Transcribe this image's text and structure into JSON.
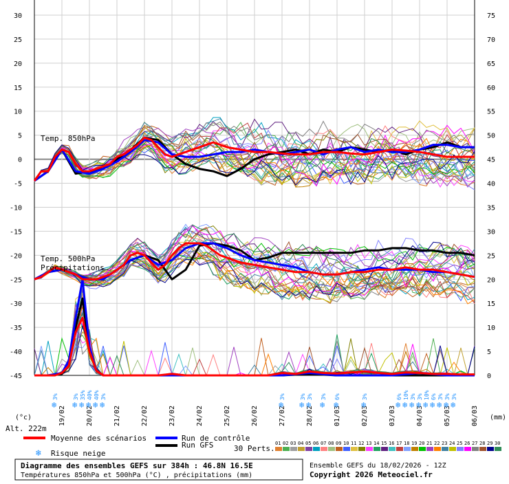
{
  "chart_data": {
    "type": "line",
    "title": "Diagramme des ensembles GEFS sur 384h : 46.8N 16.5E",
    "subtitle": "Températures 850hPa et 500hPa (°C) , précipitations (mm)",
    "run_label": "Ensemble GEFS du 18/02/2026 - 12Z",
    "copyright": "Copyright 2026 Meteociel.fr",
    "altitude": "Alt. 222m",
    "ylabel_left": "(°c)",
    "ylabel_right": "(mm)",
    "panel_labels": [
      "Temp. 850hPa",
      "Temp. 500hPa",
      "Précipitations"
    ],
    "y_left_ticks": [
      30,
      25,
      20,
      15,
      10,
      5,
      0,
      -5,
      -10,
      -15,
      -20,
      -25,
      -30,
      -35,
      -40,
      -45
    ],
    "y_right_ticks": [
      75,
      70,
      65,
      60,
      55,
      50,
      45,
      40,
      35,
      30,
      25,
      20,
      15,
      10,
      5,
      0
    ],
    "ylim_left": [
      -45,
      30
    ],
    "ylim_right": [
      0,
      75
    ],
    "x_dates": [
      "19/02",
      "20/02",
      "21/02",
      "22/02",
      "23/02",
      "24/02",
      "25/02",
      "26/02",
      "27/02",
      "28/02",
      "01/03",
      "02/03",
      "03/03",
      "04/03",
      "05/03",
      "06/03"
    ],
    "legend": {
      "mean": "Moyenne des scénarios",
      "control": "Run de contrôle",
      "gfs": "Run GFS",
      "snow": "Risque neige",
      "perts_label": "30 Perts.",
      "pert_numbers": [
        "01",
        "02",
        "03",
        "04",
        "05",
        "06",
        "07",
        "08",
        "09",
        "10",
        "11",
        "12",
        "13",
        "14",
        "15",
        "16",
        "17",
        "18",
        "19",
        "20",
        "21",
        "22",
        "23",
        "24",
        "25",
        "26",
        "27",
        "28",
        "29",
        "30"
      ],
      "pert_colors": [
        "#e08030",
        "#4caf50",
        "#9e9e9e",
        "#c0a030",
        "#8040a0",
        "#00a0c0",
        "#ff8080",
        "#a0c080",
        "#c06020",
        "#4060ff",
        "#e0c040",
        "#808000",
        "#ff40ff",
        "#20a060",
        "#602080",
        "#40c0c0",
        "#c04040",
        "#80a0ff",
        "#c08000",
        "#00c000",
        "#a040c0",
        "#ff8000",
        "#4080a0",
        "#c0c000",
        "#8080ff",
        "#ff00ff",
        "#808080",
        "#a0522d",
        "#00008b",
        "#2e8b57"
      ]
    },
    "snow_risk": [
      {
        "day": 0.75,
        "pct": [
          "3%"
        ]
      },
      {
        "day": 1.5,
        "pct": [
          "3%"
        ]
      },
      {
        "day": 1.75,
        "pct": [
          "35%"
        ]
      },
      {
        "day": 2.0,
        "pct": [
          "40%"
        ]
      },
      {
        "day": 2.25,
        "pct": [
          "40%"
        ]
      },
      {
        "day": 2.5,
        "pct": [
          "3%"
        ]
      },
      {
        "day": 9.0,
        "pct": [
          "3%"
        ]
      },
      {
        "day": 9.75,
        "pct": [
          "3%"
        ]
      },
      {
        "day": 10.0,
        "pct": [
          "3%"
        ]
      },
      {
        "day": 10.5,
        "pct": [
          "3%"
        ]
      },
      {
        "day": 11.0,
        "pct": [
          "6%"
        ]
      },
      {
        "day": 12.0,
        "pct": [
          "3%"
        ]
      },
      {
        "day": 13.25,
        "pct": [
          "6%"
        ]
      },
      {
        "day": 13.5,
        "pct": [
          "10%"
        ]
      },
      {
        "day": 13.75,
        "pct": [
          "3%"
        ]
      },
      {
        "day": 14.0,
        "pct": [
          "3%"
        ]
      },
      {
        "day": 14.25,
        "pct": [
          "10%"
        ]
      },
      {
        "day": 14.5,
        "pct": [
          "6%"
        ]
      },
      {
        "day": 14.75,
        "pct": [
          "3%"
        ]
      },
      {
        "day": 15.0,
        "pct": [
          "3%"
        ]
      },
      {
        "day": 15.25,
        "pct": [
          "3%"
        ]
      }
    ],
    "series": [
      {
        "name": "Moyenne des scénarios",
        "panel": "t850",
        "color": "#ff0000",
        "x": [
          0,
          0.25,
          0.5,
          0.75,
          1,
          1.25,
          1.5,
          1.75,
          2,
          2.25,
          2.5,
          2.75,
          3,
          3.25,
          3.5,
          3.75,
          4,
          4.25,
          4.5,
          4.75,
          5,
          5.25,
          5.5,
          5.75,
          6,
          6.25,
          6.5,
          6.75,
          7,
          7.5,
          8,
          8.5,
          9,
          9.5,
          10,
          10.5,
          11,
          11.5,
          12,
          12.5,
          13,
          13.5,
          14,
          14.5,
          15,
          15.5,
          16
        ],
        "values": [
          -4.5,
          -2.5,
          -2.5,
          0.5,
          2,
          1.5,
          -1,
          -2.5,
          -2.5,
          -2,
          -1.5,
          -1,
          0.5,
          1,
          2,
          3,
          4.5,
          4,
          2.5,
          1,
          0.5,
          1,
          1.5,
          2,
          2.5,
          3,
          3.5,
          3,
          2.5,
          2,
          1.5,
          1.5,
          1.2,
          1,
          1,
          1.5,
          1.5,
          1.2,
          1,
          1.5,
          2,
          1.8,
          1.5,
          1,
          0.5,
          0.5,
          0.5
        ]
      },
      {
        "name": "Run de contrôle",
        "panel": "t850",
        "color": "#0000ff",
        "x": [
          0,
          0.5,
          1,
          1.5,
          2,
          2.5,
          3,
          3.5,
          4,
          4.5,
          5,
          5.5,
          6,
          6.5,
          7,
          7.5,
          8,
          8.5,
          9,
          9.5,
          10,
          10.5,
          11,
          11.5,
          12,
          12.5,
          13,
          13.5,
          14,
          14.5,
          15,
          15.5,
          16
        ],
        "values": [
          -4.5,
          -2.5,
          2,
          -2.5,
          -3,
          -2,
          -0.5,
          1.5,
          4,
          3.5,
          1,
          0.5,
          0.5,
          1,
          1.5,
          1.5,
          2,
          1.5,
          1,
          1.5,
          2,
          1,
          2,
          2.5,
          1.5,
          2,
          1.5,
          1.5,
          2,
          3,
          3,
          2.5,
          2.5
        ]
      },
      {
        "name": "Run GFS",
        "panel": "t850",
        "color": "#000000",
        "x": [
          0,
          0.5,
          1,
          1.5,
          2,
          2.5,
          3,
          3.5,
          4,
          4.5,
          5,
          5.5,
          6,
          6.5,
          7,
          7.5,
          8,
          8.5,
          9,
          9.5,
          10,
          10.5,
          11,
          11.5,
          12,
          12.5,
          13,
          13.5,
          14,
          14.5,
          15,
          15.5,
          16
        ],
        "values": [
          -4.5,
          -2.5,
          2,
          -3,
          -2.5,
          -2,
          0,
          2,
          4.5,
          4,
          1,
          -1,
          -2,
          -2.5,
          -3.5,
          -2,
          0,
          1,
          1.5,
          2,
          1,
          2,
          1.5,
          2.5,
          2,
          1.5,
          2,
          1,
          2,
          2.5,
          3.5,
          2.5,
          2.5
        ]
      },
      {
        "name": "Moyenne des scénarios",
        "panel": "t500",
        "color": "#ff0000",
        "x": [
          0,
          0.25,
          0.5,
          0.75,
          1,
          1.25,
          1.5,
          1.75,
          2,
          2.25,
          2.5,
          2.75,
          3,
          3.25,
          3.5,
          3.75,
          4,
          4.25,
          4.5,
          4.75,
          5,
          5.25,
          5.5,
          5.75,
          6,
          6.25,
          6.5,
          6.75,
          7,
          7.5,
          8,
          8.5,
          9,
          9.5,
          10,
          10.5,
          11,
          11.5,
          12,
          12.5,
          13,
          13.5,
          14,
          14.5,
          15,
          15.5,
          16
        ],
        "values": [
          -25,
          -24.5,
          -23.5,
          -22.5,
          -23,
          -23.5,
          -24,
          -25,
          -25,
          -25,
          -24.5,
          -24,
          -23,
          -22,
          -20,
          -19.5,
          -20,
          -21.5,
          -23,
          -22,
          -20,
          -18.5,
          -17.5,
          -17.5,
          -17.5,
          -18,
          -19,
          -20,
          -20.5,
          -21.5,
          -22,
          -22.5,
          -23,
          -23.5,
          -23.5,
          -24,
          -24,
          -23.5,
          -23.5,
          -23,
          -23,
          -22.5,
          -23,
          -23,
          -23.5,
          -24,
          -24.5
        ]
      },
      {
        "name": "Run de contrôle",
        "panel": "t500",
        "color": "#0000ff",
        "x": [
          0,
          0.5,
          1,
          1.5,
          2,
          2.5,
          3,
          3.5,
          4,
          4.5,
          5,
          5.5,
          6,
          6.5,
          7,
          7.5,
          8,
          8.5,
          9,
          9.5,
          10,
          10.5,
          11,
          11.5,
          12,
          12.5,
          13,
          13.5,
          14,
          14.5,
          15,
          15.5,
          16
        ],
        "values": [
          -25,
          -23.5,
          -23,
          -24,
          -25,
          -25,
          -23,
          -21,
          -20,
          -22,
          -21,
          -18.5,
          -17.5,
          -17.5,
          -18.5,
          -20,
          -21,
          -21.5,
          -22,
          -22.5,
          -23.5,
          -24,
          -24,
          -23.5,
          -23,
          -22.5,
          -23,
          -23,
          -23,
          -23.5,
          -23.5,
          -24,
          -24.5
        ]
      },
      {
        "name": "Run GFS",
        "panel": "t500",
        "color": "#000000",
        "x": [
          0,
          0.5,
          1,
          1.5,
          2,
          2.5,
          3,
          3.5,
          4,
          4.5,
          5,
          5.5,
          6,
          6.5,
          7,
          7.5,
          8,
          8.5,
          9,
          9.5,
          10,
          10.5,
          11,
          11.5,
          12,
          12.5,
          13,
          13.5,
          14,
          14.5,
          15,
          15.5,
          16
        ],
        "values": [
          -25,
          -23.5,
          -23,
          -24,
          -25,
          -25,
          -23,
          -21,
          -20,
          -21,
          -25,
          -23,
          -18,
          -17.5,
          -18,
          -19,
          -21,
          -20.5,
          -19.5,
          -19.5,
          -19.5,
          -19.5,
          -19.5,
          -19.5,
          -19,
          -19,
          -18.5,
          -18.5,
          -19,
          -19,
          -19.5,
          -19.5,
          -20
        ]
      },
      {
        "name": "Moyenne des scénarios",
        "panel": "precip",
        "color": "#ff0000",
        "x": [
          0,
          0.25,
          0.5,
          0.75,
          1,
          1.25,
          1.5,
          1.75,
          2,
          2.25,
          2.5,
          2.75,
          3,
          3.5,
          4,
          4.5,
          5,
          5.5,
          6,
          6.5,
          7,
          7.5,
          8,
          8.5,
          9,
          9.5,
          10,
          10.5,
          11,
          11.5,
          12,
          12.5,
          13,
          13.5,
          14,
          14.5,
          15,
          15.5,
          16
        ],
        "values": [
          0,
          0,
          0,
          0,
          0.5,
          2,
          9,
          12,
          5,
          1,
          0,
          0,
          0,
          0,
          0,
          0,
          0.3,
          0,
          0,
          0,
          0,
          0,
          0,
          0,
          0.5,
          0.3,
          0.8,
          0.5,
          0.4,
          0.6,
          0.8,
          0.5,
          0.3,
          0.6,
          0.5,
          0.3,
          0.3,
          0.2,
          0.2
        ]
      },
      {
        "name": "Run de contrôle",
        "panel": "precip",
        "color": "#0000ff",
        "x": [
          0,
          0.5,
          1,
          1.25,
          1.5,
          1.75,
          2,
          2.25,
          2.5,
          3,
          4,
          5,
          6,
          7,
          8,
          9,
          10,
          11,
          12,
          13,
          14,
          15,
          16
        ],
        "values": [
          0,
          0,
          0.5,
          3,
          12,
          20,
          6,
          1,
          0,
          0,
          0,
          0,
          0,
          0,
          0,
          0,
          0.5,
          0,
          0,
          0,
          0.5,
          0,
          0
        ]
      },
      {
        "name": "Run GFS",
        "panel": "precip",
        "color": "#000000",
        "x": [
          0,
          0.5,
          1,
          1.25,
          1.5,
          1.75,
          2,
          2.25,
          2.5,
          3,
          4,
          5,
          6,
          7,
          8,
          9,
          10,
          11,
          12,
          13,
          14,
          15,
          16
        ],
        "values": [
          0,
          0,
          0.3,
          2,
          10,
          16,
          5,
          1,
          0,
          0,
          0,
          0,
          0,
          0,
          0,
          0,
          0.3,
          0,
          0,
          0,
          0,
          0,
          0
        ]
      }
    ]
  }
}
